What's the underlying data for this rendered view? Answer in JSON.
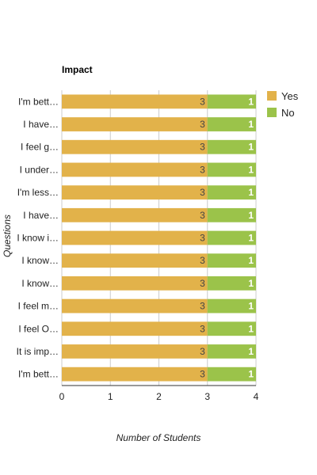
{
  "chart_data": {
    "type": "bar",
    "orientation": "horizontal",
    "stacked": true,
    "title": "Impact",
    "xlabel": "Number of Students",
    "ylabel": "Questions",
    "xlim": [
      0,
      4
    ],
    "xticks": [
      "0",
      "1",
      "2",
      "3",
      "4"
    ],
    "categories": [
      "I'm bett…",
      "I have…",
      "I feel g…",
      "I under…",
      "I'm less…",
      "I have…",
      "I know i…",
      "I know…",
      "I know…",
      "I feel m…",
      "I feel O…",
      "It is imp…",
      "I'm bett…"
    ],
    "series": [
      {
        "name": "Yes",
        "color": "#e2b24a",
        "values": [
          3,
          3,
          3,
          3,
          3,
          3,
          3,
          3,
          3,
          3,
          3,
          3,
          3
        ]
      },
      {
        "name": "No",
        "color": "#9bc34a",
        "values": [
          1,
          1,
          1,
          1,
          1,
          1,
          1,
          1,
          1,
          1,
          1,
          1,
          1
        ]
      }
    ],
    "legend": "top-right",
    "grid": true
  }
}
